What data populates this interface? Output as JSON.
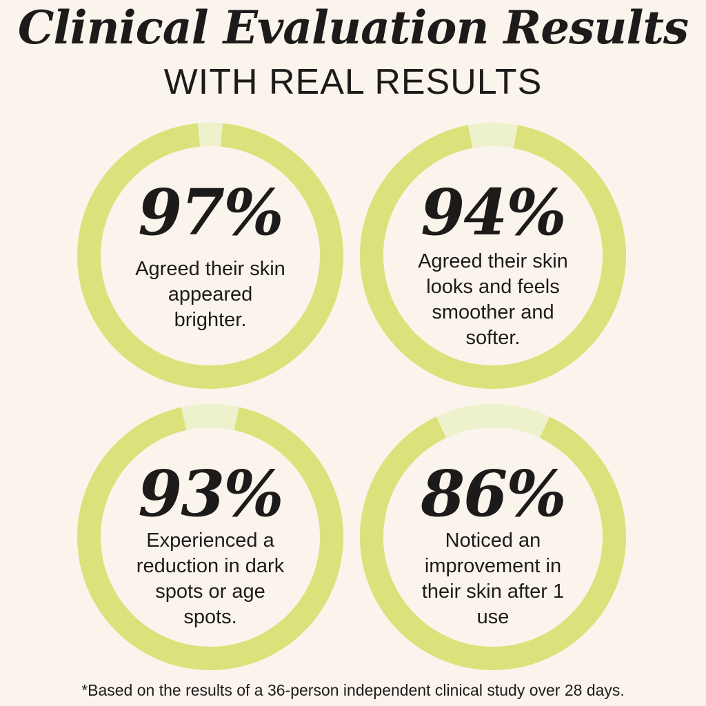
{
  "header": {
    "title": "Clinical Evaluation Results",
    "subtitle": "WITH REAL RESULTS"
  },
  "colors": {
    "background": "#fbf4ec",
    "ring_filled": "#dbe27b",
    "ring_remaining": "#eef2cc",
    "text": "#1d1b1a"
  },
  "chart_data": {
    "type": "pie",
    "title": "Clinical Evaluation Results",
    "subtitle": "WITH REAL RESULTS",
    "categories": [
      "Agreed their skin appeared brighter.",
      "Agreed their skin looks and feels smoother and softer.",
      "Experienced a reduction in dark spots or age spots.",
      "Noticed an improvement in their skin after 1 use"
    ],
    "values": [
      97,
      94,
      93,
      86
    ],
    "labels": [
      "97%",
      "94%",
      "93%",
      "86%"
    ],
    "unit": "%",
    "max": 100
  },
  "footnote": "*Based on the results of a 36-person independent clinical study over 28 days."
}
